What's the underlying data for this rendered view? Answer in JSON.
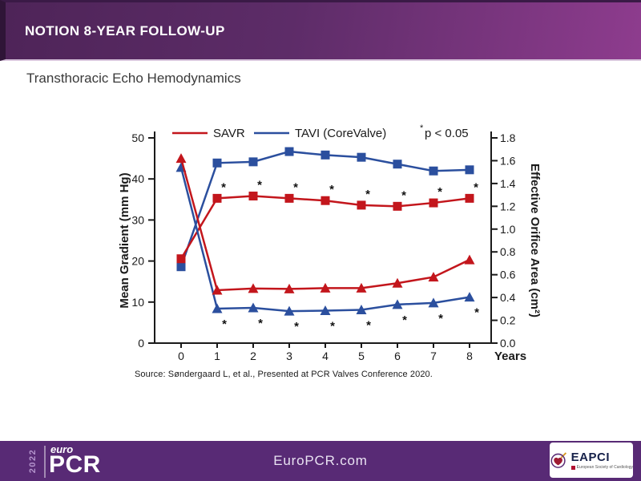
{
  "header": {
    "title": "NOTION 8-YEAR FOLLOW-UP"
  },
  "body": {
    "subtitle": "Transthoracic Echo Hemodynamics",
    "source": "Source: Søndergaard L, et al., Presented at PCR Valves Conference 2020."
  },
  "footer": {
    "website": "EuroPCR.com",
    "logo": {
      "year": "2022",
      "euro": "euro",
      "pcr": "PCR"
    },
    "eapci": {
      "name": "EAPCI",
      "tagline": "European Society of Cardiology"
    }
  },
  "colors": {
    "savr": "#C3161C",
    "tavi": "#2B4F9E",
    "header_gradient_start": "#4E2458",
    "header_gradient_end": "#8E3C8E",
    "footer_bg": "#582A75"
  },
  "chart_data": {
    "type": "line",
    "title": "Transthoracic Echo Hemodynamics",
    "x": [
      0,
      1,
      2,
      3,
      4,
      5,
      6,
      7,
      8
    ],
    "xlabel": "Years",
    "grid": false,
    "legend_position": "top",
    "axes": {
      "left": {
        "label": "Mean Gradient (mm Hg)",
        "range": [
          0,
          50
        ],
        "ticks": [
          0,
          10,
          20,
          30,
          40,
          50
        ]
      },
      "right": {
        "label": "Effective Orifice Area (cm²)",
        "range": [
          0,
          1.8
        ],
        "ticks": [
          "0.0",
          "0.2",
          "0.4",
          "0.6",
          "0.8",
          "1.0",
          "1.2",
          "1.4",
          "1.6",
          "1.8"
        ]
      }
    },
    "legend": [
      {
        "label": "SAVR",
        "color": "#C3161C"
      },
      {
        "label": "TAVI (CoreValve)",
        "color": "#2B4F9E"
      }
    ],
    "note": {
      "marker": "*",
      "text": "p < 0.05"
    },
    "series": [
      {
        "id": "tavi-eoa",
        "name": "TAVI Effective Orifice Area",
        "axis": "right",
        "color": "#2B4F9E",
        "marker": "square",
        "values": [
          0.67,
          1.58,
          1.59,
          1.68,
          1.65,
          1.63,
          1.57,
          1.51,
          1.52
        ]
      },
      {
        "id": "savr-eoa",
        "name": "SAVR Effective Orifice Area",
        "axis": "right",
        "color": "#C3161C",
        "marker": "square",
        "values": [
          0.74,
          1.27,
          1.29,
          1.27,
          1.25,
          1.21,
          1.2,
          1.23,
          1.27
        ],
        "sig_above": [
          1,
          2,
          3,
          4,
          5,
          6,
          7,
          8
        ]
      },
      {
        "id": "tavi-mean-gradient",
        "name": "TAVI Mean Gradient",
        "axis": "left",
        "color": "#2B4F9E",
        "marker": "triangle",
        "values": [
          42.8,
          8.4,
          8.6,
          7.8,
          7.9,
          8.1,
          9.4,
          9.8,
          11.2
        ],
        "sig_below": [
          1,
          2,
          3,
          4,
          5,
          6,
          7,
          8
        ]
      },
      {
        "id": "savr-mean-gradient",
        "name": "SAVR Mean Gradient",
        "axis": "left",
        "color": "#C3161C",
        "marker": "triangle",
        "values": [
          45.0,
          12.9,
          13.3,
          13.2,
          13.4,
          13.4,
          14.6,
          16.1,
          20.3
        ]
      }
    ]
  }
}
